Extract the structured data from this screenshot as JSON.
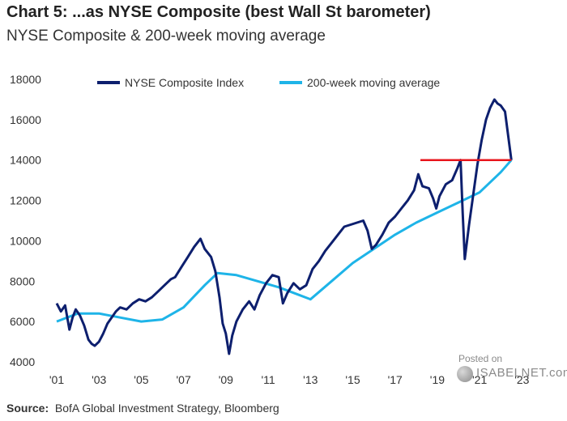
{
  "title": "Chart 5: ...as NYSE Composite (best Wall St barometer)",
  "subtitle": "NYSE Composite & 200-week moving average",
  "source_label": "Source:",
  "source_text": "BofA Global Investment Strategy, Bloomberg",
  "watermark": {
    "line1": "Posted on",
    "line2": "ISABELNET.com"
  },
  "colors": {
    "index": "#0d1f6e",
    "ma": "#1eb4e8",
    "threshold": "#e8151b",
    "axis_text": "#333333"
  },
  "chart_data": {
    "type": "line",
    "title": "NYSE Composite & 200-week moving average",
    "xlim": [
      2001,
      2023.6
    ],
    "ylim": [
      4000,
      18000
    ],
    "x_ticks": [
      2001,
      2003,
      2005,
      2007,
      2009,
      2011,
      2013,
      2015,
      2017,
      2019,
      2021,
      2023
    ],
    "x_tick_labels": [
      "'01",
      "'03",
      "'05",
      "'07",
      "'09",
      "'11",
      "'13",
      "'15",
      "'17",
      "'19",
      "'21",
      "'23"
    ],
    "y_ticks": [
      4000,
      6000,
      8000,
      10000,
      12000,
      14000,
      16000,
      18000
    ],
    "y_tick_labels": [
      "4000",
      "6000",
      "8000",
      "10000",
      "12000",
      "14000",
      "16000",
      "18000"
    ],
    "grid": false,
    "legend_position": "top",
    "series": [
      {
        "name": "NYSE Composite Index",
        "x": [
          2001.0,
          2001.2,
          2001.4,
          2001.6,
          2001.75,
          2001.9,
          2002.1,
          2002.3,
          2002.5,
          2002.65,
          2002.8,
          2003.0,
          2003.2,
          2003.4,
          2003.6,
          2003.8,
          2004.0,
          2004.3,
          2004.6,
          2004.9,
          2005.2,
          2005.5,
          2005.8,
          2006.1,
          2006.4,
          2006.6,
          2006.9,
          2007.2,
          2007.5,
          2007.8,
          2008.0,
          2008.3,
          2008.5,
          2008.7,
          2008.85,
          2009.0,
          2009.15,
          2009.3,
          2009.5,
          2009.8,
          2010.1,
          2010.35,
          2010.6,
          2010.9,
          2011.2,
          2011.5,
          2011.7,
          2011.9,
          2012.2,
          2012.5,
          2012.8,
          2013.1,
          2013.4,
          2013.7,
          2014.0,
          2014.3,
          2014.6,
          2014.9,
          2015.2,
          2015.5,
          2015.7,
          2015.9,
          2016.1,
          2016.4,
          2016.7,
          2017.0,
          2017.3,
          2017.6,
          2017.9,
          2018.1,
          2018.3,
          2018.6,
          2018.8,
          2018.95,
          2019.1,
          2019.4,
          2019.7,
          2019.95,
          2020.1,
          2020.2,
          2020.3,
          2020.5,
          2020.7,
          2020.9,
          2021.1,
          2021.3,
          2021.5,
          2021.7,
          2021.85,
          2022.0,
          2022.2,
          2022.35,
          2022.5
        ],
        "y": [
          6900,
          6500,
          6800,
          5600,
          6200,
          6600,
          6300,
          5800,
          5100,
          4900,
          4800,
          5000,
          5400,
          5900,
          6200,
          6500,
          6700,
          6600,
          6900,
          7100,
          7000,
          7200,
          7500,
          7800,
          8100,
          8200,
          8700,
          9200,
          9700,
          10100,
          9600,
          9200,
          8500,
          7200,
          5900,
          5400,
          4400,
          5300,
          6000,
          6600,
          7000,
          6600,
          7300,
          7900,
          8300,
          8200,
          6900,
          7400,
          7900,
          7600,
          7800,
          8600,
          9000,
          9500,
          9900,
          10300,
          10700,
          10800,
          10900,
          11000,
          10500,
          9600,
          9800,
          10300,
          10900,
          11200,
          11600,
          12000,
          12500,
          13300,
          12700,
          12600,
          12100,
          11600,
          12200,
          12800,
          13000,
          13600,
          14000,
          11400,
          9100,
          10800,
          12300,
          13800,
          15000,
          16000,
          16600,
          17000,
          16800,
          16700,
          16400,
          15200,
          14000
        ]
      },
      {
        "name": "200-week moving average",
        "x": [
          2001.0,
          2002.0,
          2003.0,
          2004.0,
          2005.0,
          2006.0,
          2007.0,
          2008.0,
          2008.6,
          2009.5,
          2010.5,
          2011.5,
          2012.5,
          2013.0,
          2014.0,
          2015.0,
          2016.0,
          2017.0,
          2018.0,
          2019.0,
          2020.0,
          2021.0,
          2022.0,
          2022.5
        ],
        "y": [
          6000,
          6400,
          6400,
          6200,
          6000,
          6100,
          6700,
          7800,
          8400,
          8300,
          8000,
          7700,
          7300,
          7100,
          8000,
          8900,
          9600,
          10300,
          10900,
          11400,
          11900,
          12400,
          13400,
          14000
        ]
      }
    ],
    "reference_line": {
      "y": 14000,
      "x_start": 2018.2,
      "x_end": 2022.5
    }
  }
}
